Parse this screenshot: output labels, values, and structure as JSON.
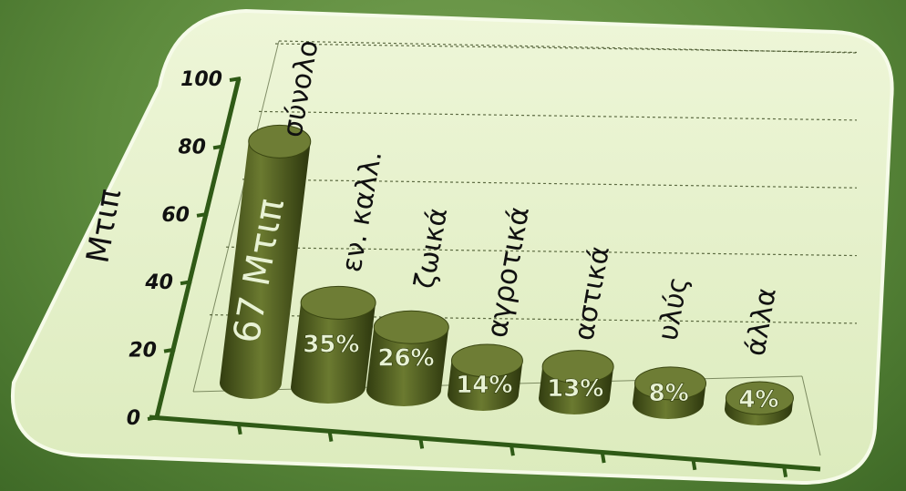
{
  "chart_data": {
    "type": "bar",
    "ylabel": "Μτιπ",
    "ylim": [
      0,
      100
    ],
    "y_ticks": [
      "0",
      "20",
      "40",
      "60",
      "80",
      "100"
    ],
    "categories": [
      "σύνολο",
      "εν. καλλ.",
      "ζωικά",
      "αγροτικά",
      "αστικά",
      "υλύς",
      "άλλα"
    ],
    "values": [
      67,
      23.45,
      17.42,
      9.38,
      8.71,
      5.36,
      2.68
    ],
    "bar_labels": [
      "67 Μτιπ",
      "35%",
      "26%",
      "14%",
      "13%",
      "8%",
      "4%"
    ],
    "grid": "dashed horizontal"
  },
  "colors": {
    "panel": "#e8f2cf",
    "bar": "#4c5a1e",
    "bar_top": "#6e7d35",
    "bar_label": "#e8f2d4",
    "axis": "#2f5a16",
    "text": "#111111"
  }
}
